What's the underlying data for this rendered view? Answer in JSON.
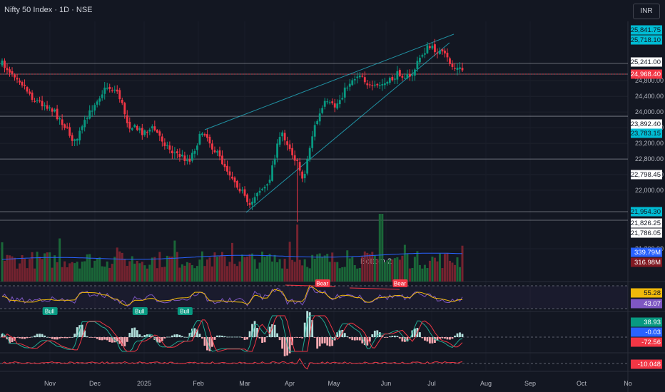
{
  "header": {
    "title": "Nifty 50 Index · 1D · NSE",
    "currency": "INR"
  },
  "annotation": {
    "text": "Bottom 2"
  },
  "colors": {
    "background": "#131722",
    "up": "#089981",
    "down": "#f23645",
    "cyan": "#26c6da",
    "blue": "#2962ff",
    "purple": "#7e57c2",
    "yellow": "#f0b90b"
  },
  "chart_data": {
    "type": "candlestick",
    "x_axis": {
      "labels": [
        "Nov",
        "Dec",
        "2025",
        "Feb",
        "Mar",
        "Apr",
        "May",
        "Jun",
        "Jul",
        "Aug",
        "Sep",
        "Oct",
        "No"
      ]
    },
    "price_axis": {
      "ticks": [
        24800,
        24400,
        24000,
        23600,
        23200,
        22800,
        22400,
        22000,
        21200
      ]
    },
    "price_labels": [
      {
        "value": "25,841.75",
        "style": "cyan"
      },
      {
        "value": "25,718.10",
        "style": "cyan"
      },
      {
        "value": "25,241.00",
        "style": "white"
      },
      {
        "value": "24,968.40",
        "style": "red"
      },
      {
        "value": "23,892.40",
        "style": "white"
      },
      {
        "value": "23,783.15",
        "style": "cyan"
      },
      {
        "value": "22,798.45",
        "style": "white"
      },
      {
        "value": "21,954.30",
        "style": "cyan"
      },
      {
        "value": "21,826.25",
        "style": "white"
      },
      {
        "value": "21,786.05",
        "style": "white"
      }
    ],
    "horizontal_levels": [
      25241,
      24968.4,
      23892.4,
      22798.45,
      21954.3,
      21826.25
    ],
    "volume_labels": [
      {
        "value": "339.79M",
        "style": "blue"
      },
      {
        "value": "316.98M",
        "style": "darkred"
      }
    ],
    "rsi_labels": [
      {
        "value": "55.28",
        "style": "yellow"
      },
      {
        "value": "43.07",
        "style": "purple"
      }
    ],
    "macd_labels": [
      {
        "value": "38.93",
        "style": "green"
      },
      {
        "value": "-0.03",
        "style": "blue"
      },
      {
        "value": "-72.56",
        "style": "red"
      }
    ],
    "osc_labels": [
      {
        "value": "-10.048",
        "style": "red"
      }
    ],
    "signals": [
      {
        "text": "Bull",
        "type": "bull",
        "index": 19
      },
      {
        "text": "Bull",
        "type": "bull",
        "index": 55
      },
      {
        "text": "Bull",
        "type": "bull",
        "index": 73
      },
      {
        "text": "Bear",
        "type": "bear",
        "index": 128
      },
      {
        "text": "Bear",
        "type": "bear",
        "index": 159
      }
    ]
  }
}
